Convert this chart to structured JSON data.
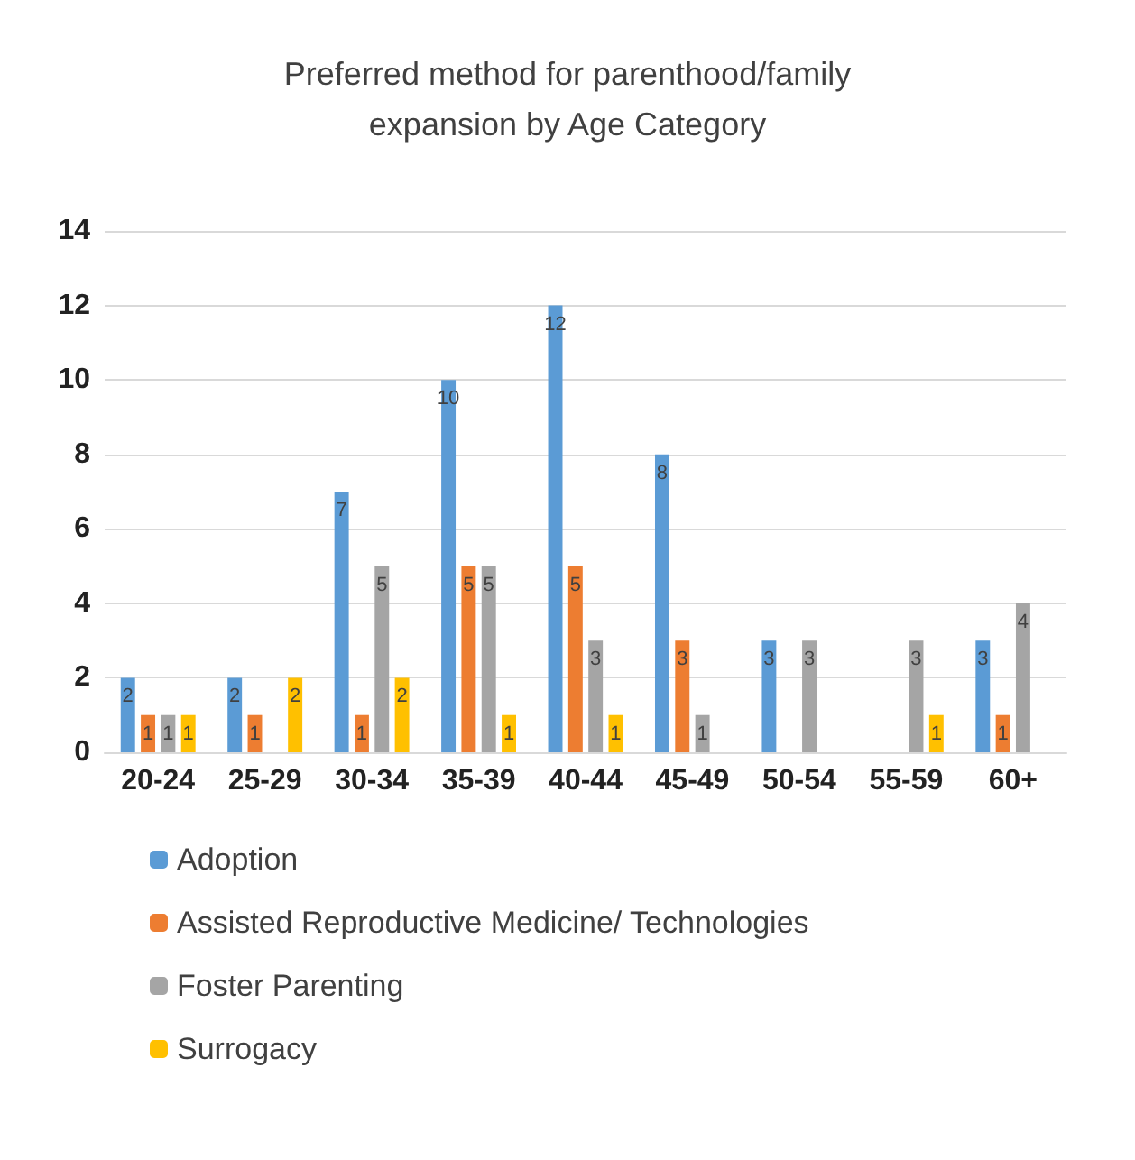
{
  "chart_data": {
    "type": "bar",
    "title": "Preferred method for parenthood/family\nexpansion by Age Category",
    "categories": [
      "20-24",
      "25-29",
      "30-34",
      "35-39",
      "40-44",
      "45-49",
      "50-54",
      "55-59",
      "60+"
    ],
    "series": [
      {
        "name": "Adoption",
        "color": "#5b9bd5",
        "values": [
          2,
          2,
          7,
          10,
          12,
          8,
          3,
          null,
          3
        ]
      },
      {
        "name": "Assisted Reproductive Medicine/ Technologies",
        "color": "#ed7d31",
        "values": [
          1,
          1,
          1,
          5,
          5,
          3,
          null,
          null,
          1
        ]
      },
      {
        "name": "Foster Parenting",
        "color": "#a5a5a5",
        "values": [
          1,
          null,
          5,
          5,
          3,
          1,
          3,
          3,
          4
        ]
      },
      {
        "name": "Surrogacy",
        "color": "#ffc000",
        "values": [
          1,
          2,
          2,
          1,
          1,
          null,
          null,
          1,
          null
        ]
      }
    ],
    "ylim": [
      0,
      14
    ],
    "yticks": [
      0,
      2,
      4,
      6,
      8,
      10,
      12,
      14
    ],
    "grid": "y",
    "legend": "bottom",
    "data_labels": true
  }
}
